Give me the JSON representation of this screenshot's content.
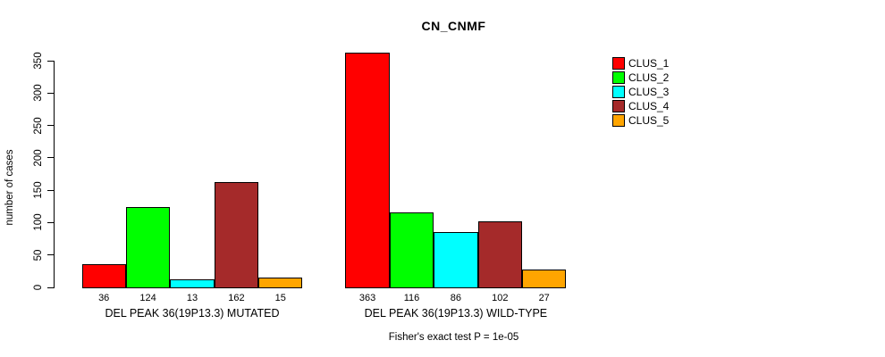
{
  "chart_data": {
    "type": "bar",
    "title": "CN_CNMF",
    "ylabel": "number of cases",
    "xlabel": "",
    "ylim": [
      0,
      350
    ],
    "yticks": [
      0,
      50,
      100,
      150,
      200,
      250,
      300,
      350
    ],
    "grid": false,
    "legend_position": "right",
    "categories": [
      "DEL PEAK 36(19P13.3) MUTATED",
      "DEL PEAK 36(19P13.3) WILD-TYPE"
    ],
    "series": [
      {
        "name": "CLUS_1",
        "color": "#FF0000",
        "values": [
          36,
          363
        ]
      },
      {
        "name": "CLUS_2",
        "color": "#00FF00",
        "values": [
          124,
          116
        ]
      },
      {
        "name": "CLUS_3",
        "color": "#00FFFF",
        "values": [
          13,
          86
        ]
      },
      {
        "name": "CLUS_4",
        "color": "#A52A2A",
        "values": [
          162,
          102
        ]
      },
      {
        "name": "CLUS_5",
        "color": "#FFA500",
        "values": [
          15,
          27
        ]
      }
    ],
    "bar_value_labels": [
      [
        36,
        124,
        13,
        162,
        15
      ],
      [
        363,
        116,
        86,
        102,
        27
      ]
    ],
    "annotation": "Fisher's exact test P = 1e-05",
    "axis_color": "#000000",
    "background_color": "#FFFFFF"
  }
}
